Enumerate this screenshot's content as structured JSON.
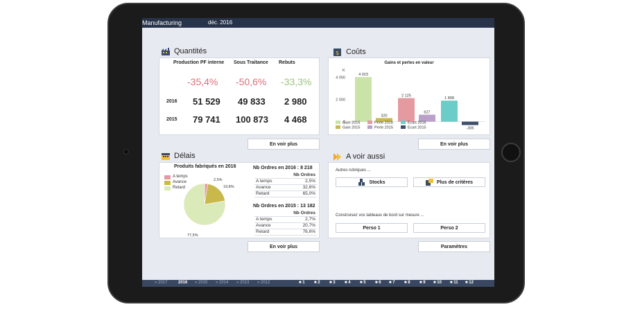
{
  "header": {
    "app_title": "Manufacturing",
    "period": "déc. 2016"
  },
  "quantites": {
    "title": "Quantités",
    "columns": [
      "Production PF interne",
      "Sous Traitance",
      "Rebuts"
    ],
    "pcts": [
      "-35,4%",
      "-50,6%",
      "-33,3%"
    ],
    "rows": [
      {
        "year": "2016",
        "values": [
          "51 529",
          "49 833",
          "2 980"
        ]
      },
      {
        "year": "2015",
        "values": [
          "79 741",
          "100 873",
          "4 468"
        ]
      }
    ],
    "more": "En voir plus"
  },
  "couts": {
    "title": "Coûts",
    "more": "En voir plus"
  },
  "chart_data": {
    "type": "bar",
    "title": "Gains et pertes en valeur",
    "unit_label": "K",
    "ylim": [
      -400,
      4600
    ],
    "yticks": [
      "4 000",
      "2 000",
      "0"
    ],
    "ytick_values": [
      4000,
      2000,
      0
    ],
    "categories": [
      "Gain",
      "Perte",
      "Ecart"
    ],
    "series": [
      {
        "name": "Gain 2016",
        "group": 0,
        "value": 4023,
        "label": "4 023",
        "color": "#c9e3a9"
      },
      {
        "name": "Gain 2015",
        "group": 0,
        "value": 320,
        "label": "320",
        "color": "#c9b84a"
      },
      {
        "name": "Perte 2016",
        "group": 1,
        "value": 2125,
        "label": "2 125",
        "color": "#e49aa0"
      },
      {
        "name": "Perte 2015",
        "group": 1,
        "value": 627,
        "label": "627",
        "color": "#bba1c9"
      },
      {
        "name": "Ecart 2016",
        "group": 2,
        "value": 1898,
        "label": "1 898",
        "color": "#6cccc8"
      },
      {
        "name": "Ecart 2015",
        "group": 2,
        "value": -306,
        "label": "-306",
        "color": "#3f4f6b"
      }
    ]
  },
  "delais": {
    "title": "Délais",
    "pie_title": "Produits fabriqués  en  2016",
    "legend": [
      "A temps",
      "Avance",
      "Retard"
    ],
    "pie": [
      {
        "name": "A temps",
        "value": 2.5,
        "label": "2,5%",
        "color": "#e49aa0"
      },
      {
        "name": "Avance",
        "value": 19.8,
        "label": "19,8%",
        "color": "#c9b84a"
      },
      {
        "name": "Retard",
        "value": 77.5,
        "label": "77,5%",
        "color": "#dbeab9"
      }
    ],
    "orders_2016_title": "Nb Ordres  en  2016 : 8 218",
    "orders_2015_title": "Nb Ordres  en  2015 : 13 182",
    "orders_header": "Nb Ordres",
    "orders_2016": [
      [
        "A temps",
        "2,5%"
      ],
      [
        "Avance",
        "32,6%"
      ],
      [
        "Retard",
        "65,0%"
      ]
    ],
    "orders_2015": [
      [
        "A temps",
        "2,7%"
      ],
      [
        "Avance",
        "20,7%"
      ],
      [
        "Retard",
        "76,6%"
      ]
    ],
    "more": "En voir plus"
  },
  "avoir": {
    "title": "A voir aussi",
    "rubriques": "Autres rubriques ...",
    "stocks": "Stocks",
    "criteres": "Plus de critères",
    "construisez": "Construisez vos tableaux de bord sur mesure ...",
    "perso1": "Perso 1",
    "perso2": "Perso 2",
    "params": "Paramètres"
  },
  "footer": {
    "years": [
      "« 2017",
      "2016",
      "» 2015",
      "» 2014",
      "» 2013",
      "» 2012"
    ],
    "months": [
      "1",
      "2",
      "3",
      "4",
      "5",
      "6",
      "7",
      "8",
      "9",
      "10",
      "11",
      "12"
    ]
  }
}
